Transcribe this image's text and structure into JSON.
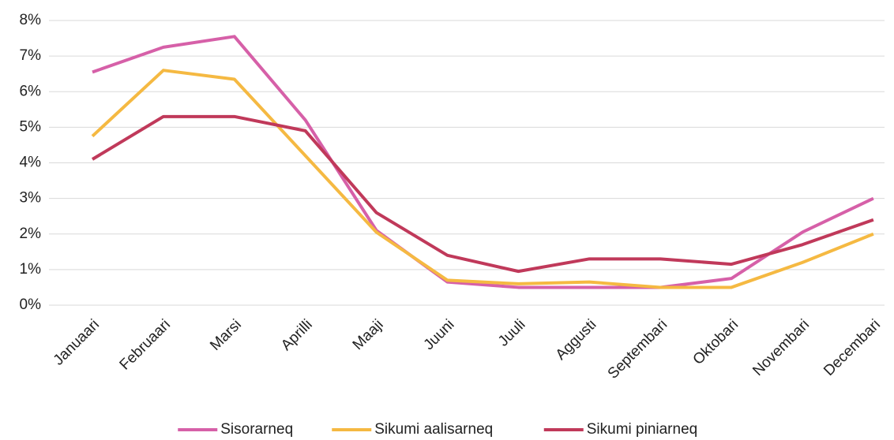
{
  "chart_data": {
    "type": "line",
    "categories": [
      "Januaari",
      "Februaari",
      "Marsi",
      "Aprilli",
      "Maaji",
      "Juuni",
      "Juuli",
      "Aggusti",
      "Septembari",
      "Oktobari",
      "Novembari",
      "Decembari"
    ],
    "series": [
      {
        "name": "Sisorarneq",
        "color": "#d660a8",
        "values": [
          6.55,
          7.25,
          7.55,
          5.2,
          2.1,
          0.65,
          0.5,
          0.5,
          0.5,
          0.75,
          2.05,
          3.0
        ]
      },
      {
        "name": "Sikumi aalisarneq",
        "color": "#f5b942",
        "values": [
          4.75,
          6.6,
          6.35,
          4.2,
          2.05,
          0.7,
          0.6,
          0.65,
          0.5,
          0.5,
          1.2,
          2.0
        ]
      },
      {
        "name": "Sikumi piniarneq",
        "color": "#c0395a",
        "values": [
          4.1,
          5.3,
          5.3,
          4.9,
          2.6,
          1.4,
          0.95,
          1.3,
          1.3,
          1.15,
          1.7,
          2.4
        ]
      }
    ],
    "ylim": [
      0,
      8
    ],
    "yticks": [
      {
        "value": 0,
        "label": "0%"
      },
      {
        "value": 1,
        "label": "1%"
      },
      {
        "value": 2,
        "label": "2%"
      },
      {
        "value": 3,
        "label": "3%"
      },
      {
        "value": 4,
        "label": "4%"
      },
      {
        "value": 5,
        "label": "5%"
      },
      {
        "value": 6,
        "label": "6%"
      },
      {
        "value": 7,
        "label": "7%"
      },
      {
        "value": 8,
        "label": "8%"
      }
    ],
    "grid": true,
    "legend": "bottom"
  }
}
